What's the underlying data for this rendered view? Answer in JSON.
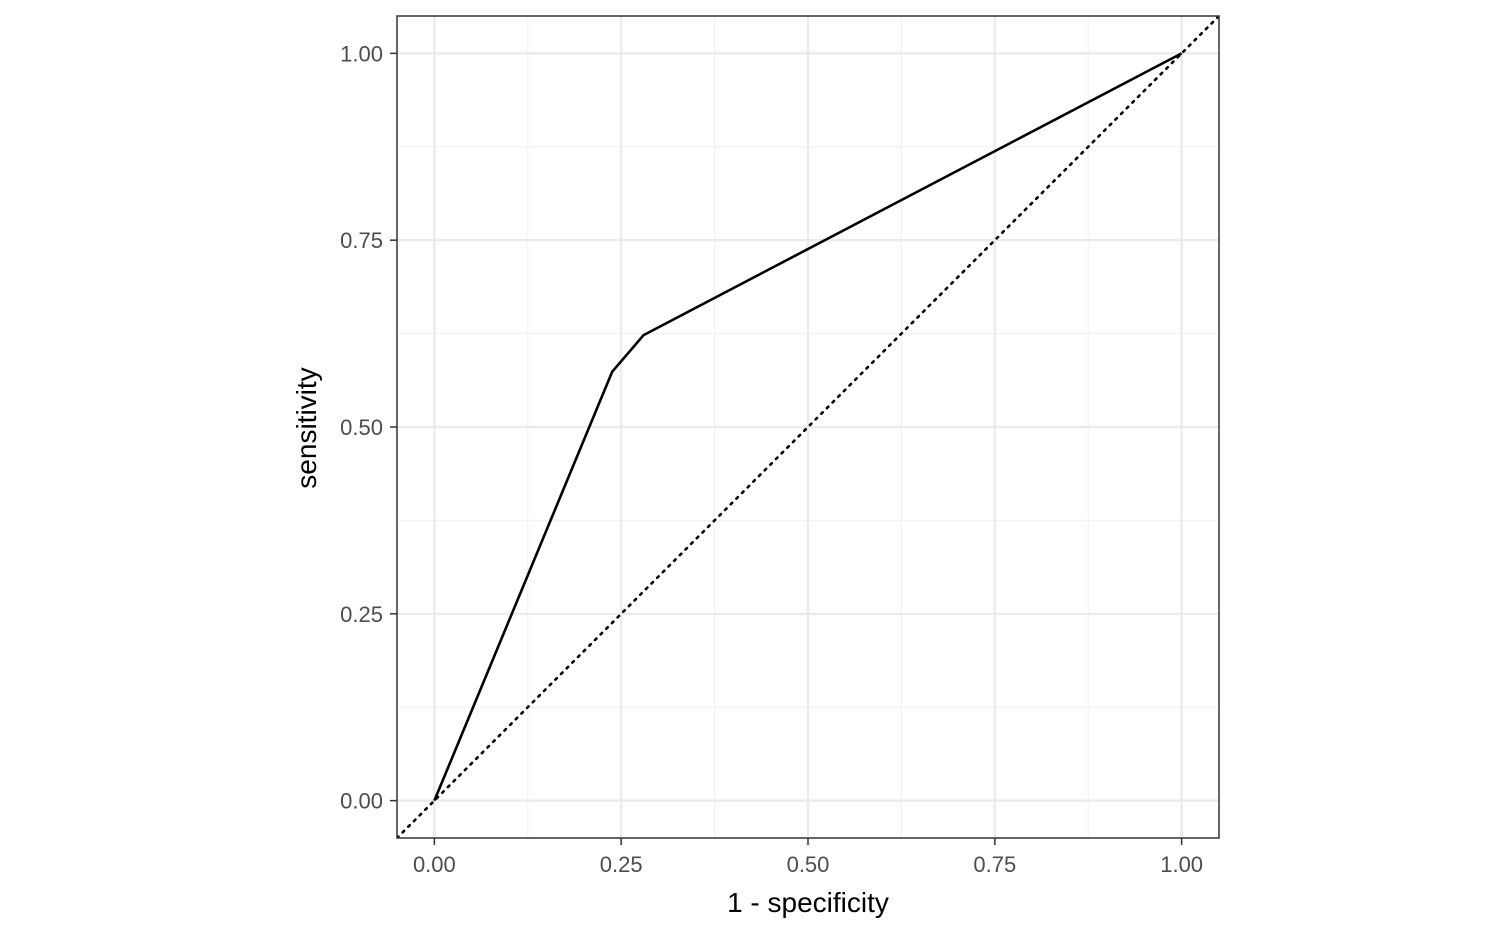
{
  "chart_data": {
    "type": "line",
    "title": "",
    "xlabel": "1 - specificity",
    "ylabel": "sensitivity",
    "xlim": [
      -0.05,
      1.05
    ],
    "ylim": [
      -0.05,
      1.05
    ],
    "xticks": [
      0.0,
      0.25,
      0.5,
      0.75,
      1.0
    ],
    "yticks": [
      0.0,
      0.25,
      0.5,
      0.75,
      1.0
    ],
    "xtick_labels": [
      "0.00",
      "0.25",
      "0.50",
      "0.75",
      "1.00"
    ],
    "ytick_labels": [
      "0.00",
      "0.25",
      "0.50",
      "0.75",
      "1.00"
    ],
    "grid": true,
    "legend": "none",
    "series": [
      {
        "x": [
          0.0,
          0.238,
          0.28,
          1.0
        ],
        "y": [
          0.0,
          0.574,
          0.623,
          1.0
        ],
        "style": "solid",
        "color": "#000000"
      },
      {
        "x": [
          -0.05,
          1.05
        ],
        "y": [
          -0.05,
          1.05
        ],
        "style": "dotted",
        "color": "#000000"
      }
    ],
    "colors": {
      "panel_border": "#333333",
      "grid_major": "#ebebeb",
      "grid_minor": "#f2f2f2",
      "tick_text": "#4d4d4d"
    }
  }
}
